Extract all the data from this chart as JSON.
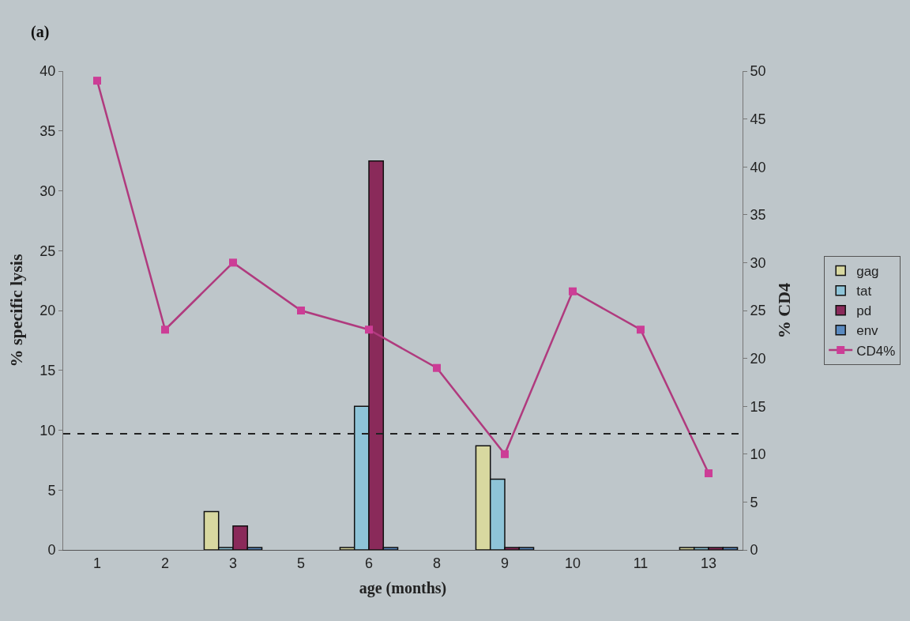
{
  "chart_data": {
    "type": "bar",
    "annotations": [
      "(a)"
    ],
    "xlabel": "age (months)",
    "ylabel": "% specific lysis",
    "y2label": "% CD4",
    "categories": [
      "1",
      "2",
      "3",
      "5",
      "6",
      "8",
      "9",
      "10",
      "11",
      "13"
    ],
    "series": [
      {
        "name": "gag",
        "color": "#d8d8a0",
        "values": [
          null,
          null,
          3.2,
          null,
          0.2,
          null,
          8.7,
          null,
          null,
          0.2
        ]
      },
      {
        "name": "tat",
        "color": "#8ec4d8",
        "values": [
          null,
          null,
          0.2,
          null,
          12,
          null,
          5.9,
          null,
          null,
          0.2
        ]
      },
      {
        "name": "pd",
        "color": "#8a2a5a",
        "values": [
          null,
          null,
          2.0,
          null,
          32.5,
          null,
          0.2,
          null,
          null,
          0.2
        ]
      },
      {
        "name": "env",
        "color": "#5a8ac0",
        "values": [
          null,
          null,
          0.2,
          null,
          0.2,
          null,
          0.2,
          null,
          null,
          0.2
        ]
      },
      {
        "name": "CD4%",
        "type": "line",
        "axis": "y2",
        "color": "#b03a7e",
        "marker": "square",
        "values": [
          49,
          23,
          30,
          25,
          23,
          19,
          10,
          27,
          23,
          8
        ]
      }
    ],
    "ylim": [
      0,
      40
    ],
    "yticks": [
      0,
      5,
      10,
      15,
      20,
      25,
      30,
      35,
      40
    ],
    "y2lim": [
      0,
      50
    ],
    "y2ticks": [
      0,
      5,
      10,
      15,
      20,
      25,
      30,
      35,
      40,
      45,
      50
    ],
    "ref_lines": [
      {
        "axis": "y",
        "value": 9.7,
        "color": "#222222",
        "line_style": "dashed"
      }
    ],
    "grid": false,
    "legend": "right"
  }
}
